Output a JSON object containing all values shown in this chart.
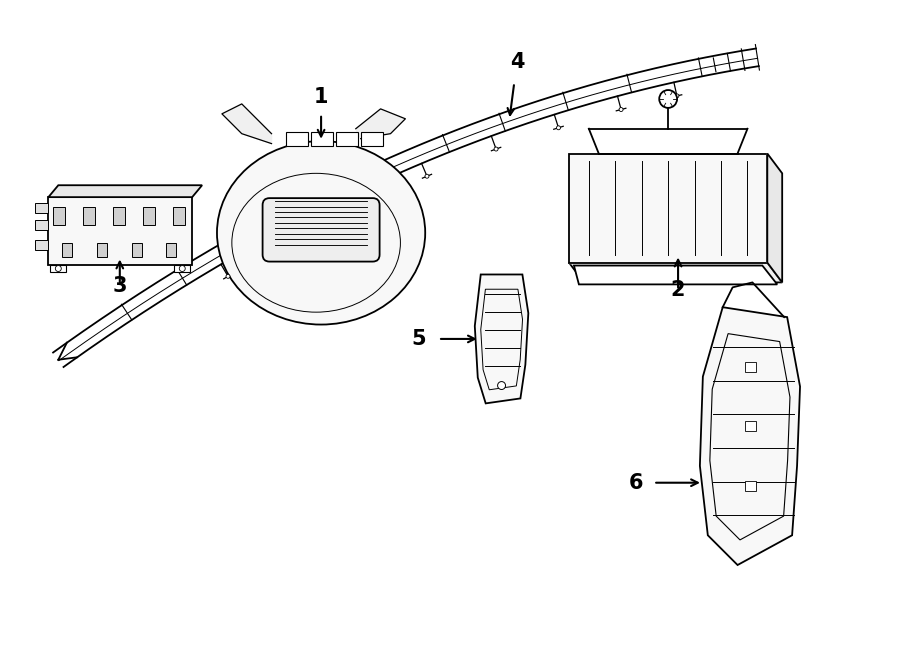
{
  "background_color": "#ffffff",
  "line_color": "#000000",
  "label_color": "#000000",
  "lw": 1.3
}
